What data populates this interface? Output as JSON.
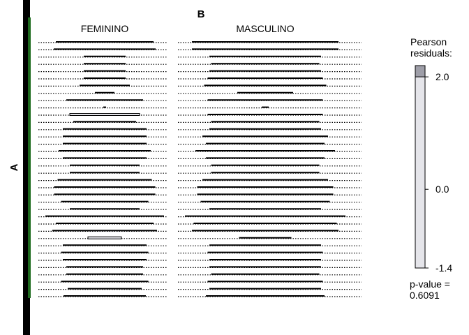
{
  "chart_data": {
    "type": "mosaic",
    "var_top": "B",
    "var_left": "A",
    "columns": [
      "FEMININO",
      "MASCULINO"
    ],
    "rows": 36,
    "widths_feminino": [
      140,
      146,
      60,
      60,
      60,
      60,
      72,
      28,
      110,
      4,
      100,
      90,
      120,
      120,
      120,
      132,
      120,
      100,
      100,
      135,
      145,
      145,
      125,
      100,
      170,
      140,
      150,
      48,
      120,
      125,
      120,
      110,
      110,
      125,
      106,
      118
    ],
    "widths_masculino": [
      210,
      210,
      160,
      155,
      160,
      165,
      175,
      80,
      165,
      10,
      165,
      155,
      160,
      180,
      170,
      200,
      170,
      155,
      155,
      180,
      195,
      195,
      185,
      160,
      230,
      205,
      210,
      75,
      160,
      165,
      160,
      160,
      155,
      165,
      160,
      170
    ],
    "dashed_feminino": [
      false,
      false,
      false,
      false,
      false,
      false,
      false,
      false,
      false,
      false,
      true,
      false,
      false,
      false,
      false,
      false,
      false,
      false,
      false,
      false,
      false,
      false,
      false,
      false,
      false,
      false,
      false,
      true,
      false,
      false,
      false,
      false,
      false,
      false,
      false,
      false
    ],
    "dashed_masculino": [
      false,
      false,
      false,
      false,
      false,
      false,
      false,
      false,
      false,
      false,
      false,
      false,
      false,
      false,
      false,
      false,
      false,
      false,
      false,
      false,
      false,
      false,
      false,
      false,
      false,
      false,
      false,
      false,
      false,
      false,
      false,
      false,
      false,
      false,
      false,
      false
    ],
    "legend": {
      "title_line1": "Pearson",
      "title_line2": "residuals:",
      "ticks": [
        "2.0",
        "0.0",
        "-1.4"
      ],
      "tick_values": [
        2.0,
        0.0,
        -1.4
      ],
      "min": -1.4,
      "max": 2.2
    },
    "pvalue_label": "p-value =",
    "pvalue": "0.6091"
  },
  "colors": {
    "positive": "#9e9ea8",
    "neutral": "#e5e5ea",
    "line": "#000000"
  }
}
